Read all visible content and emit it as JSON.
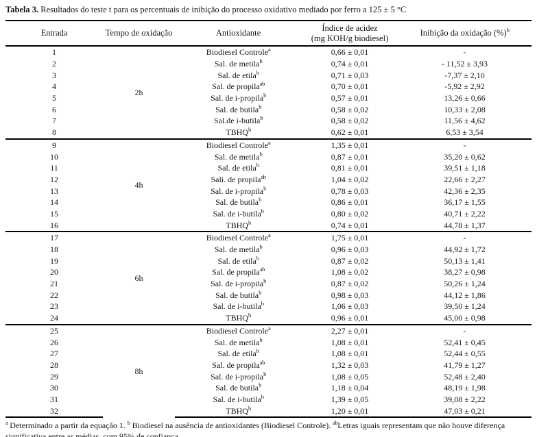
{
  "caption": {
    "label": "Tabela 3.",
    "text": " Resultados do teste t para os percentuais de inibição do processo oxidativo mediado por ferro a 125 ± 5 °C"
  },
  "table": {
    "headers": {
      "entrada": {
        "text": "Entrada"
      },
      "tempo": {
        "text": "Tempo de oxidação"
      },
      "antioxidante": {
        "text": "Antioxidante"
      },
      "indice": {
        "line1": "Índice de acidez",
        "line2": "(mg KOH/g biodiesel)"
      },
      "inibicao": {
        "text": "Inibição da oxidação (%)",
        "sup": "b"
      }
    },
    "groups": [
      {
        "tempo": "2h",
        "rows": [
          {
            "entrada": "1",
            "antioxidante": "Biodiesel Controle",
            "sup": "a",
            "indice": "0,66 ± 0,01",
            "inibicao": "-"
          },
          {
            "entrada": "2",
            "antioxidante": "Sal. de metila",
            "sup": "b",
            "indice": "0,74 ± 0,01",
            "inibicao": "- 11,52 ± 3,93"
          },
          {
            "entrada": "3",
            "antioxidante": "Sal. de etila",
            "sup": "b",
            "indice": "0,71 ± 0,03",
            "inibicao": "-7,37 ± 2,10"
          },
          {
            "entrada": "4",
            "antioxidante": "Sal. de propila",
            "sup": "ab",
            "indice": "0,70 ± 0,01",
            "inibicao": "-5,92 ± 2,92"
          },
          {
            "entrada": "5",
            "antioxidante": "Sal. de i-propila",
            "sup": "b",
            "indice": "0,57 ± 0,01",
            "inibicao": "13,26 ± 0,66"
          },
          {
            "entrada": "6",
            "antioxidante": "Sal. de butila",
            "sup": "b",
            "indice": "0,58 ± 0,02",
            "inibicao": "10,33 ± 2,08"
          },
          {
            "entrada": "7",
            "antioxidante": "Sal.de i-butila",
            "sup": "b",
            "indice": "0,58 ± 0,02",
            "inibicao": "11,56 ± 4,62"
          },
          {
            "entrada": "8",
            "antioxidante": "TBHQ",
            "sup": "b",
            "indice": "0,62 ± 0,01",
            "inibicao": "6,53 ± 3,54"
          }
        ]
      },
      {
        "tempo": "4h",
        "rows": [
          {
            "entrada": "9",
            "antioxidante": "Biodiesel Controle",
            "sup": "a",
            "indice": "1,35 ± 0,01",
            "inibicao": "-"
          },
          {
            "entrada": "10",
            "antioxidante": "Sal. de metila",
            "sup": "b",
            "indice": "0,87 ± 0,01",
            "inibicao": "35,20 ± 0,62"
          },
          {
            "entrada": "11",
            "antioxidante": "Sal. de etila",
            "sup": "b",
            "indice": "0,81 ± 0,01",
            "inibicao": "39,51 ± 1,18"
          },
          {
            "entrada": "12",
            "antioxidante": "Sali. de propila",
            "sup": "ab",
            "indice": "1,04 ± 0,02",
            "inibicao": "22,66 ± 2,27"
          },
          {
            "entrada": "13",
            "antioxidante": "Sal. de i-propila",
            "sup": "b",
            "indice": "0,78 ± 0,03",
            "inibicao": "42,36 ± 2,35"
          },
          {
            "entrada": "14",
            "antioxidante": "Sal. de butila",
            "sup": "b",
            "indice": "0,86 ± 0,01",
            "inibicao": "36,17 ± 1,55"
          },
          {
            "entrada": "15",
            "antioxidante": "Sal. de i-butila",
            "sup": "b",
            "indice": "0,80 ± 0,02",
            "inibicao": "40,71 ± 2,22"
          },
          {
            "entrada": "16",
            "antioxidante": "TBHQ",
            "sup": "b",
            "indice": "0,74 ± 0,01",
            "inibicao": "44,78 ± 1,37"
          }
        ]
      },
      {
        "tempo": "6h",
        "rows": [
          {
            "entrada": "17",
            "antioxidante": "Biodiesel Controle",
            "sup": "a",
            "indice": "1,75 ± 0,01",
            "inibicao": "-"
          },
          {
            "entrada": "18",
            "antioxidante": "Sal. de metila",
            "sup": "b",
            "indice": "0,96 ± 0,03",
            "inibicao": "44,92 ± 1,72"
          },
          {
            "entrada": "19",
            "antioxidante": "Sal. de etila",
            "sup": "b",
            "indice": "0,87 ± 0,02",
            "inibicao": "50,13 ± 1,41"
          },
          {
            "entrada": "20",
            "antioxidante": "Sal. de propila",
            "sup": "ab",
            "indice": "1,08 ± 0,02",
            "inibicao": "38,27 ± 0,98"
          },
          {
            "entrada": "21",
            "antioxidante": "Sal. de i-propila",
            "sup": "b",
            "indice": "0,87 ± 0,02",
            "inibicao": "50,26 ± 1,24"
          },
          {
            "entrada": "22",
            "antioxidante": "Sal. de butila",
            "sup": "b",
            "indice": "0,98 ± 0,03",
            "inibicao": "44,12 ± 1,86"
          },
          {
            "entrada": "23",
            "antioxidante": "Sal. de i-butila",
            "sup": "b",
            "indice": "1,06 ± 0,03",
            "inibicao": "39,50 ± 1,24"
          },
          {
            "entrada": "24",
            "antioxidante": "TBHQ",
            "sup": "b",
            "indice": "0,96 ± 0,01",
            "inibicao": "45,00 ± 0,98"
          }
        ]
      },
      {
        "tempo": "8h",
        "rows": [
          {
            "entrada": "25",
            "antioxidante": "Biodiesel Controle",
            "sup": "a",
            "indice": "2,27 ± 0,01",
            "inibicao": "-"
          },
          {
            "entrada": "26",
            "antioxidante": "Sal. de metila",
            "sup": "b",
            "indice": "1,08 ± 0,01",
            "inibicao": "52,41 ± 0,45"
          },
          {
            "entrada": "27",
            "antioxidante": "Sal. de etila",
            "sup": "b",
            "indice": "1,08 ± 0,01",
            "inibicao": "52,44 ± 0,55"
          },
          {
            "entrada": "28",
            "antioxidante": "Sal. de propila",
            "sup": "ab",
            "indice": "1,32 ± 0,03",
            "inibicao": "41,79 ± 1,27"
          },
          {
            "entrada": "29",
            "antioxidante": "Sal. de i-propila",
            "sup": "b",
            "indice": "1,08 ± 0,05",
            "inibicao": "52,48 ± 2,40"
          },
          {
            "entrada": "30",
            "antioxidante": "Sal. de butila",
            "sup": "b",
            "indice": "1,18 ± 0,04",
            "inibicao": "48,19 ± 1,98"
          },
          {
            "entrada": "31",
            "antioxidante": "Sal. de i-butila",
            "sup": "b",
            "indice": "1,39 ± 0,05",
            "inibicao": "39,08 ± 2,22"
          },
          {
            "entrada": "32",
            "antioxidante": "TBHQ",
            "sup": "b",
            "indice": "1,20 ± 0,01",
            "inibicao": "47,03 ± 0,21"
          }
        ]
      }
    ]
  },
  "footnote": {
    "parts": [
      {
        "sup": "a",
        "text": " Determinado a partir da equação 1. "
      },
      {
        "sup": "b",
        "text": " Biodiesel na ausência de antioxidantes (Biodiesel Controle). "
      },
      {
        "sup": "ab",
        "text": "Letras iguais representam que não houve diferença significativa entre as médias, com 95% de confiança."
      }
    ]
  }
}
